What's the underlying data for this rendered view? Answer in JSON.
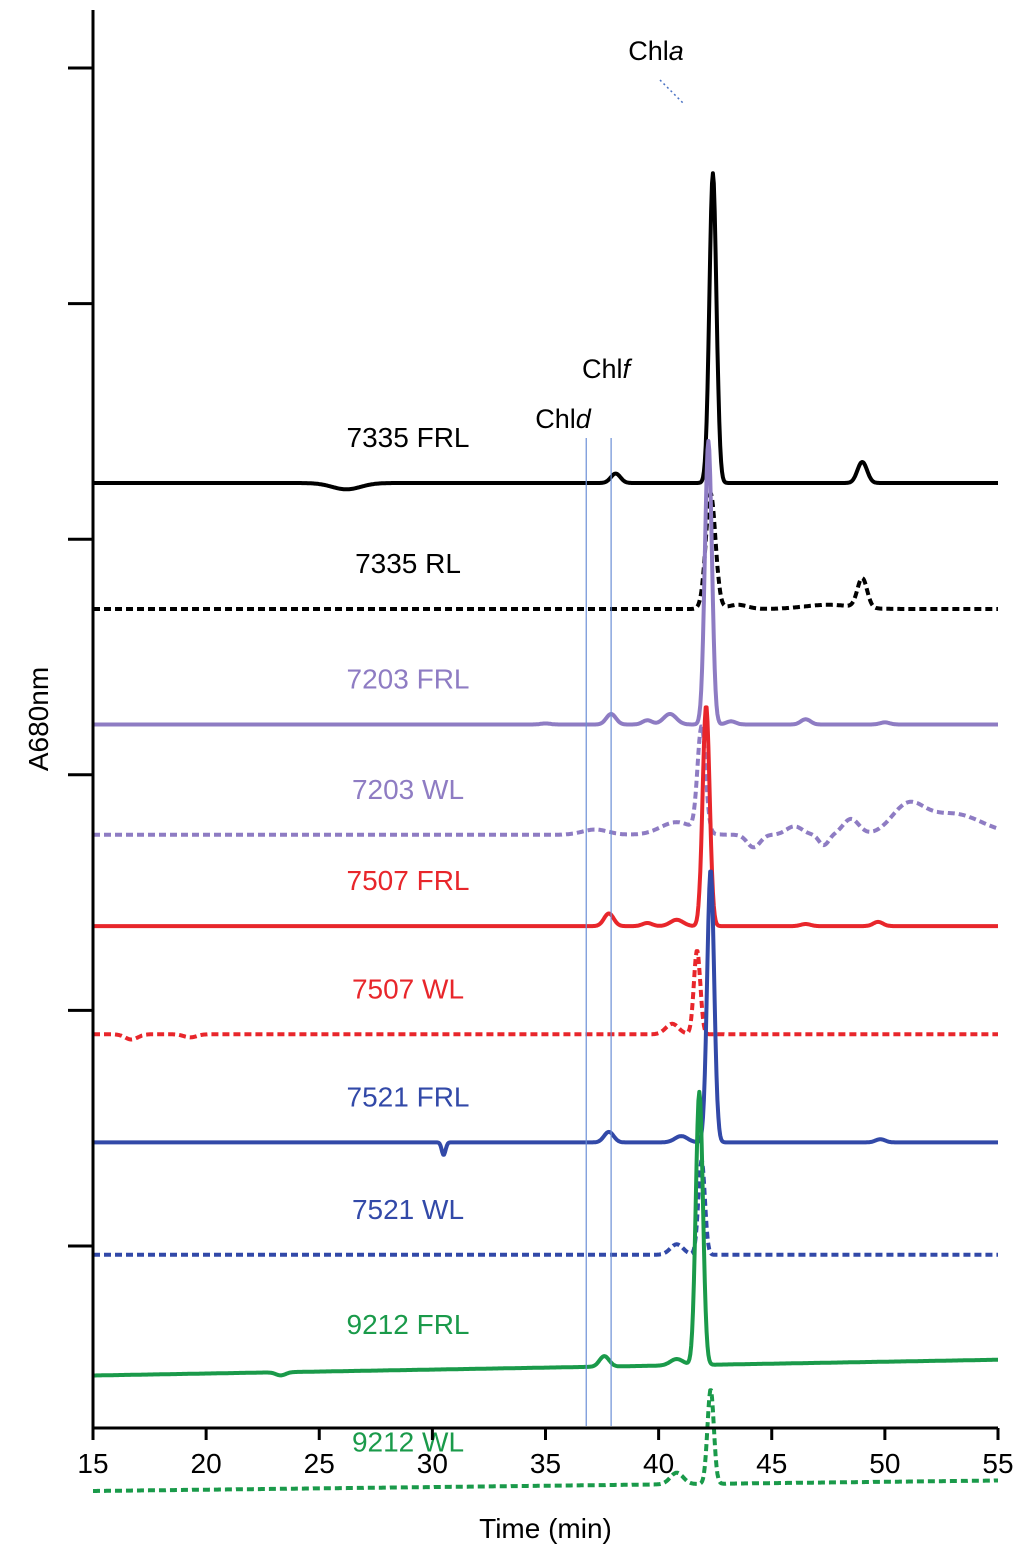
{
  "chart_data": {
    "type": "line",
    "title": "",
    "xlabel": "Time (min)",
    "ylabel": "A680nm",
    "xlim": [
      15,
      55
    ],
    "x_ticks": [
      "15",
      "20",
      "25",
      "30",
      "35",
      "40",
      "45",
      "50",
      "55"
    ],
    "y_ticks": 6,
    "annotations": [
      {
        "name": "chl-d",
        "prefix": "Chl",
        "suffix": "d",
        "x": 36.8
      },
      {
        "name": "chl-f",
        "prefix": "Chl",
        "suffix": "f",
        "x": 37.9
      },
      {
        "name": "chl-a",
        "prefix": "Chl",
        "suffix": "a",
        "x": 42.2
      }
    ],
    "series": [
      {
        "name": "7335 FRL",
        "color": "#000000",
        "dashed": false,
        "baseline": 1.2,
        "tilt": 0,
        "peaks": [
          [
            26.2,
            -0.06,
            0.9
          ],
          [
            38.1,
            0.09,
            0.3
          ],
          [
            42.4,
            2.95,
            0.22
          ],
          [
            49.0,
            0.2,
            0.3
          ]
        ]
      },
      {
        "name": "7335 RL",
        "color": "#000000",
        "dashed": true,
        "baseline": 0.0,
        "tilt": 0,
        "peaks": [
          [
            42.3,
            1.1,
            0.3
          ],
          [
            43.5,
            0.04,
            0.6
          ],
          [
            47.5,
            0.04,
            1.5
          ],
          [
            49.0,
            0.28,
            0.3
          ]
        ]
      },
      {
        "name": "7203 FRL",
        "color": "#8e7cc3",
        "dashed": false,
        "baseline": -1.1,
        "tilt": 0,
        "peaks": [
          [
            35.0,
            0.01,
            0.3
          ],
          [
            37.9,
            0.1,
            0.3
          ],
          [
            39.5,
            0.04,
            0.3
          ],
          [
            40.5,
            0.1,
            0.4
          ],
          [
            42.2,
            2.7,
            0.22
          ],
          [
            43.2,
            0.03,
            0.3
          ],
          [
            46.5,
            0.05,
            0.3
          ],
          [
            50.0,
            0.02,
            0.3
          ]
        ]
      },
      {
        "name": "7203 WL",
        "color": "#8e7cc3",
        "dashed": true,
        "baseline": -2.15,
        "tilt": 0,
        "peaks": [
          [
            37.2,
            0.05,
            0.8
          ],
          [
            40.8,
            0.12,
            1.0
          ],
          [
            41.9,
            1.0,
            0.25
          ],
          [
            44.2,
            -0.12,
            0.4
          ],
          [
            46.0,
            0.08,
            0.5
          ],
          [
            47.3,
            -0.1,
            0.3
          ],
          [
            48.5,
            0.15,
            0.5
          ],
          [
            51.0,
            0.25,
            1.0
          ],
          [
            53.0,
            0.2,
            1.8
          ]
        ]
      },
      {
        "name": "7507 FRL",
        "color": "#e8262b",
        "dashed": false,
        "baseline": -3.02,
        "tilt": 0,
        "peaks": [
          [
            37.8,
            0.12,
            0.3
          ],
          [
            39.5,
            0.03,
            0.3
          ],
          [
            40.8,
            0.06,
            0.4
          ],
          [
            42.1,
            2.1,
            0.22
          ],
          [
            46.5,
            0.02,
            0.3
          ],
          [
            49.7,
            0.04,
            0.3
          ]
        ]
      },
      {
        "name": "7507 WL",
        "color": "#e8262b",
        "dashed": true,
        "baseline": -4.05,
        "tilt": 0,
        "peaks": [
          [
            16.7,
            -0.05,
            0.4
          ],
          [
            19.3,
            -0.03,
            0.4
          ],
          [
            40.6,
            0.1,
            0.4
          ],
          [
            41.7,
            0.8,
            0.2
          ]
        ]
      },
      {
        "name": "7521 FRL",
        "color": "#3249a8",
        "dashed": false,
        "baseline": -5.08,
        "tilt": 0,
        "peaks": [
          [
            30.5,
            -0.12,
            0.12
          ],
          [
            37.8,
            0.1,
            0.3
          ],
          [
            41.0,
            0.06,
            0.4
          ],
          [
            42.3,
            2.6,
            0.22
          ],
          [
            49.8,
            0.03,
            0.3
          ]
        ]
      },
      {
        "name": "7521 WL",
        "color": "#3249a8",
        "dashed": true,
        "baseline": -6.15,
        "tilt": 0,
        "peaks": [
          [
            40.8,
            0.1,
            0.4
          ],
          [
            41.9,
            0.9,
            0.2
          ]
        ]
      },
      {
        "name": "9212 FRL",
        "color": "#1a9a4a",
        "dashed": false,
        "baseline": -7.3,
        "tilt": 0.15,
        "peaks": [
          [
            23.3,
            -0.03,
            0.3
          ],
          [
            37.6,
            0.1,
            0.3
          ],
          [
            40.8,
            0.06,
            0.4
          ],
          [
            41.8,
            2.6,
            0.22
          ]
        ]
      },
      {
        "name": "9212 WL",
        "color": "#1a9a4a",
        "dashed": true,
        "baseline": -8.4,
        "tilt": 0.1,
        "peaks": [
          [
            40.8,
            0.11,
            0.4
          ],
          [
            42.3,
            0.9,
            0.2
          ]
        ]
      }
    ]
  }
}
